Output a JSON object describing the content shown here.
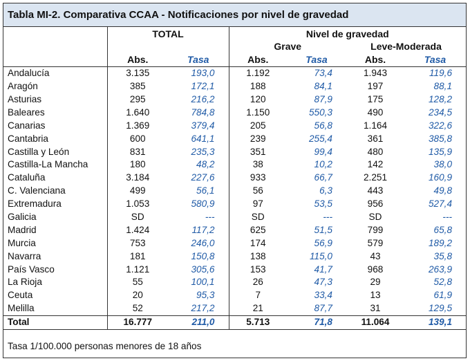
{
  "title": "Tabla MI-2. Comparativa CCAA - Notificaciones por nivel de gravedad",
  "headers": {
    "total": "TOTAL",
    "nivel": "Nivel de gravedad",
    "grave": "Grave",
    "leve": "Leve-Moderada",
    "abs": "Abs.",
    "tasa": "Tasa"
  },
  "rows": [
    {
      "name": "Andalucía",
      "t_abs": "3.135",
      "t_tasa": "193,0",
      "g_abs": "1.192",
      "g_tasa": "73,4",
      "l_abs": "1.943",
      "l_tasa": "119,6"
    },
    {
      "name": "Aragón",
      "t_abs": "385",
      "t_tasa": "172,1",
      "g_abs": "188",
      "g_tasa": "84,1",
      "l_abs": "197",
      "l_tasa": "88,1"
    },
    {
      "name": "Asturias",
      "t_abs": "295",
      "t_tasa": "216,2",
      "g_abs": "120",
      "g_tasa": "87,9",
      "l_abs": "175",
      "l_tasa": "128,2"
    },
    {
      "name": "Baleares",
      "t_abs": "1.640",
      "t_tasa": "784,8",
      "g_abs": "1.150",
      "g_tasa": "550,3",
      "l_abs": "490",
      "l_tasa": "234,5"
    },
    {
      "name": "Canarias",
      "t_abs": "1.369",
      "t_tasa": "379,4",
      "g_abs": "205",
      "g_tasa": "56,8",
      "l_abs": "1.164",
      "l_tasa": "322,6"
    },
    {
      "name": "Cantabria",
      "t_abs": "600",
      "t_tasa": "641,1",
      "g_abs": "239",
      "g_tasa": "255,4",
      "l_abs": "361",
      "l_tasa": "385,8"
    },
    {
      "name": "Castilla y León",
      "t_abs": "831",
      "t_tasa": "235,3",
      "g_abs": "351",
      "g_tasa": "99,4",
      "l_abs": "480",
      "l_tasa": "135,9"
    },
    {
      "name": "Castilla-La Mancha",
      "t_abs": "180",
      "t_tasa": "48,2",
      "g_abs": "38",
      "g_tasa": "10,2",
      "l_abs": "142",
      "l_tasa": "38,0"
    },
    {
      "name": "Cataluña",
      "t_abs": "3.184",
      "t_tasa": "227,6",
      "g_abs": "933",
      "g_tasa": "66,7",
      "l_abs": "2.251",
      "l_tasa": "160,9"
    },
    {
      "name": "C. Valenciana",
      "t_abs": "499",
      "t_tasa": "56,1",
      "g_abs": "56",
      "g_tasa": "6,3",
      "l_abs": "443",
      "l_tasa": "49,8"
    },
    {
      "name": "Extremadura",
      "t_abs": "1.053",
      "t_tasa": "580,9",
      "g_abs": "97",
      "g_tasa": "53,5",
      "l_abs": "956",
      "l_tasa": "527,4"
    },
    {
      "name": "Galicia",
      "t_abs": "SD",
      "t_tasa": "---",
      "g_abs": "SD",
      "g_tasa": "---",
      "l_abs": "SD",
      "l_tasa": "---"
    },
    {
      "name": "Madrid",
      "t_abs": "1.424",
      "t_tasa": "117,2",
      "g_abs": "625",
      "g_tasa": "51,5",
      "l_abs": "799",
      "l_tasa": "65,8"
    },
    {
      "name": "Murcia",
      "t_abs": "753",
      "t_tasa": "246,0",
      "g_abs": "174",
      "g_tasa": "56,9",
      "l_abs": "579",
      "l_tasa": "189,2"
    },
    {
      "name": "Navarra",
      "t_abs": "181",
      "t_tasa": "150,8",
      "g_abs": "138",
      "g_tasa": "115,0",
      "l_abs": "43",
      "l_tasa": "35,8"
    },
    {
      "name": "País Vasco",
      "t_abs": "1.121",
      "t_tasa": "305,6",
      "g_abs": "153",
      "g_tasa": "41,7",
      "l_abs": "968",
      "l_tasa": "263,9"
    },
    {
      "name": "La Rioja",
      "t_abs": "55",
      "t_tasa": "100,1",
      "g_abs": "26",
      "g_tasa": "47,3",
      "l_abs": "29",
      "l_tasa": "52,8"
    },
    {
      "name": "Ceuta",
      "t_abs": "20",
      "t_tasa": "95,3",
      "g_abs": "7",
      "g_tasa": "33,4",
      "l_abs": "13",
      "l_tasa": "61,9"
    },
    {
      "name": "Melilla",
      "t_abs": "52",
      "t_tasa": "217,2",
      "g_abs": "21",
      "g_tasa": "87,7",
      "l_abs": "31",
      "l_tasa": "129,5"
    }
  ],
  "total": {
    "name": "Total",
    "t_abs": "16.777",
    "t_tasa": "211,0",
    "g_abs": "5.713",
    "g_tasa": "71,8",
    "l_abs": "11.064",
    "l_tasa": "139,1"
  },
  "footnote": "Tasa 1/100.000 personas menores de 18 años",
  "colors": {
    "header_bg": "#dbe5f1",
    "rate_text": "#1f5aa6"
  }
}
